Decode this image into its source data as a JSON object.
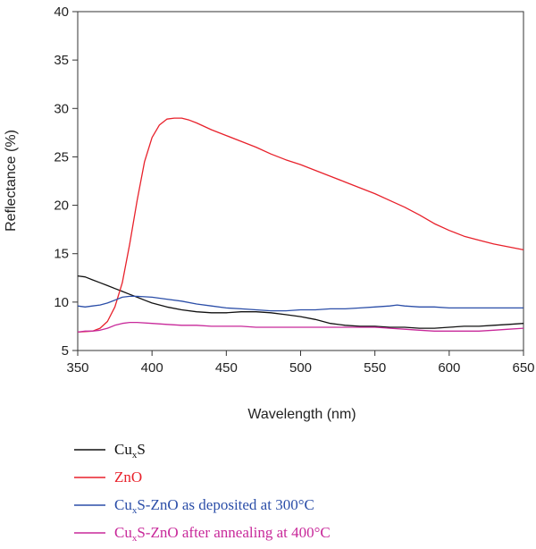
{
  "chart_data": {
    "type": "line",
    "xlabel": "Wavelength (nm)",
    "ylabel": "Reflectance (%)",
    "xlim": [
      350,
      650
    ],
    "ylim": [
      5,
      40
    ],
    "x_ticks": [
      350,
      400,
      450,
      500,
      550,
      600,
      650
    ],
    "y_ticks": [
      5,
      10,
      15,
      20,
      25,
      30,
      35,
      40
    ],
    "grid": false,
    "legend_position": "bottom-left",
    "series": [
      {
        "name_parts": [
          "Cu",
          "x",
          "S"
        ],
        "color": "#111111",
        "points": [
          [
            350,
            12.7
          ],
          [
            355,
            12.6
          ],
          [
            360,
            12.3
          ],
          [
            365,
            12.0
          ],
          [
            370,
            11.7
          ],
          [
            375,
            11.4
          ],
          [
            380,
            11.1
          ],
          [
            385,
            10.8
          ],
          [
            390,
            10.5
          ],
          [
            395,
            10.2
          ],
          [
            400,
            9.9
          ],
          [
            410,
            9.5
          ],
          [
            420,
            9.2
          ],
          [
            430,
            9.0
          ],
          [
            440,
            8.9
          ],
          [
            450,
            8.9
          ],
          [
            460,
            9.0
          ],
          [
            470,
            9.0
          ],
          [
            480,
            8.9
          ],
          [
            490,
            8.7
          ],
          [
            500,
            8.5
          ],
          [
            510,
            8.2
          ],
          [
            520,
            7.8
          ],
          [
            530,
            7.6
          ],
          [
            540,
            7.5
          ],
          [
            550,
            7.5
          ],
          [
            560,
            7.4
          ],
          [
            570,
            7.4
          ],
          [
            580,
            7.3
          ],
          [
            590,
            7.3
          ],
          [
            600,
            7.4
          ],
          [
            610,
            7.5
          ],
          [
            620,
            7.5
          ],
          [
            630,
            7.6
          ],
          [
            640,
            7.7
          ],
          [
            650,
            7.8
          ]
        ]
      },
      {
        "name_parts": [
          "ZnO",
          "",
          ""
        ],
        "color": "#e8212b",
        "points": [
          [
            350,
            6.9
          ],
          [
            360,
            7.0
          ],
          [
            365,
            7.3
          ],
          [
            370,
            8.0
          ],
          [
            375,
            9.5
          ],
          [
            380,
            12.0
          ],
          [
            385,
            16.0
          ],
          [
            390,
            20.5
          ],
          [
            395,
            24.5
          ],
          [
            400,
            27.0
          ],
          [
            405,
            28.3
          ],
          [
            410,
            28.9
          ],
          [
            415,
            29.0
          ],
          [
            420,
            29.0
          ],
          [
            425,
            28.8
          ],
          [
            430,
            28.5
          ],
          [
            440,
            27.8
          ],
          [
            450,
            27.2
          ],
          [
            460,
            26.6
          ],
          [
            470,
            26.0
          ],
          [
            480,
            25.3
          ],
          [
            490,
            24.7
          ],
          [
            500,
            24.2
          ],
          [
            510,
            23.6
          ],
          [
            520,
            23.0
          ],
          [
            530,
            22.4
          ],
          [
            540,
            21.8
          ],
          [
            550,
            21.2
          ],
          [
            560,
            20.5
          ],
          [
            570,
            19.8
          ],
          [
            580,
            19.0
          ],
          [
            590,
            18.1
          ],
          [
            600,
            17.4
          ],
          [
            610,
            16.8
          ],
          [
            620,
            16.4
          ],
          [
            630,
            16.0
          ],
          [
            640,
            15.7
          ],
          [
            650,
            15.4
          ]
        ]
      },
      {
        "name_parts": [
          "Cu",
          "x",
          "S-ZnO as deposited at 300°C"
        ],
        "color": "#2b4ea8",
        "points": [
          [
            350,
            9.6
          ],
          [
            355,
            9.5
          ],
          [
            360,
            9.6
          ],
          [
            365,
            9.7
          ],
          [
            370,
            9.9
          ],
          [
            375,
            10.2
          ],
          [
            380,
            10.5
          ],
          [
            385,
            10.6
          ],
          [
            390,
            10.6
          ],
          [
            400,
            10.5
          ],
          [
            410,
            10.3
          ],
          [
            420,
            10.1
          ],
          [
            430,
            9.8
          ],
          [
            440,
            9.6
          ],
          [
            450,
            9.4
          ],
          [
            460,
            9.3
          ],
          [
            470,
            9.2
          ],
          [
            480,
            9.1
          ],
          [
            490,
            9.1
          ],
          [
            500,
            9.2
          ],
          [
            510,
            9.2
          ],
          [
            520,
            9.3
          ],
          [
            530,
            9.3
          ],
          [
            540,
            9.4
          ],
          [
            550,
            9.5
          ],
          [
            560,
            9.6
          ],
          [
            565,
            9.7
          ],
          [
            570,
            9.6
          ],
          [
            580,
            9.5
          ],
          [
            590,
            9.5
          ],
          [
            600,
            9.4
          ],
          [
            610,
            9.4
          ],
          [
            620,
            9.4
          ],
          [
            630,
            9.4
          ],
          [
            640,
            9.4
          ],
          [
            650,
            9.4
          ]
        ]
      },
      {
        "name_parts": [
          "Cu",
          "x",
          "S-ZnO after annealing at 400°C"
        ],
        "color": "#c8299a",
        "points": [
          [
            350,
            6.9
          ],
          [
            355,
            7.0
          ],
          [
            360,
            7.0
          ],
          [
            365,
            7.1
          ],
          [
            370,
            7.3
          ],
          [
            375,
            7.6
          ],
          [
            380,
            7.8
          ],
          [
            385,
            7.9
          ],
          [
            390,
            7.9
          ],
          [
            400,
            7.8
          ],
          [
            410,
            7.7
          ],
          [
            420,
            7.6
          ],
          [
            430,
            7.6
          ],
          [
            440,
            7.5
          ],
          [
            450,
            7.5
          ],
          [
            460,
            7.5
          ],
          [
            470,
            7.4
          ],
          [
            480,
            7.4
          ],
          [
            490,
            7.4
          ],
          [
            500,
            7.4
          ],
          [
            510,
            7.4
          ],
          [
            520,
            7.4
          ],
          [
            530,
            7.4
          ],
          [
            540,
            7.4
          ],
          [
            550,
            7.4
          ],
          [
            560,
            7.3
          ],
          [
            570,
            7.2
          ],
          [
            580,
            7.1
          ],
          [
            590,
            7.0
          ],
          [
            600,
            7.0
          ],
          [
            610,
            7.0
          ],
          [
            620,
            7.0
          ],
          [
            630,
            7.1
          ],
          [
            640,
            7.2
          ],
          [
            650,
            7.3
          ]
        ]
      }
    ]
  }
}
